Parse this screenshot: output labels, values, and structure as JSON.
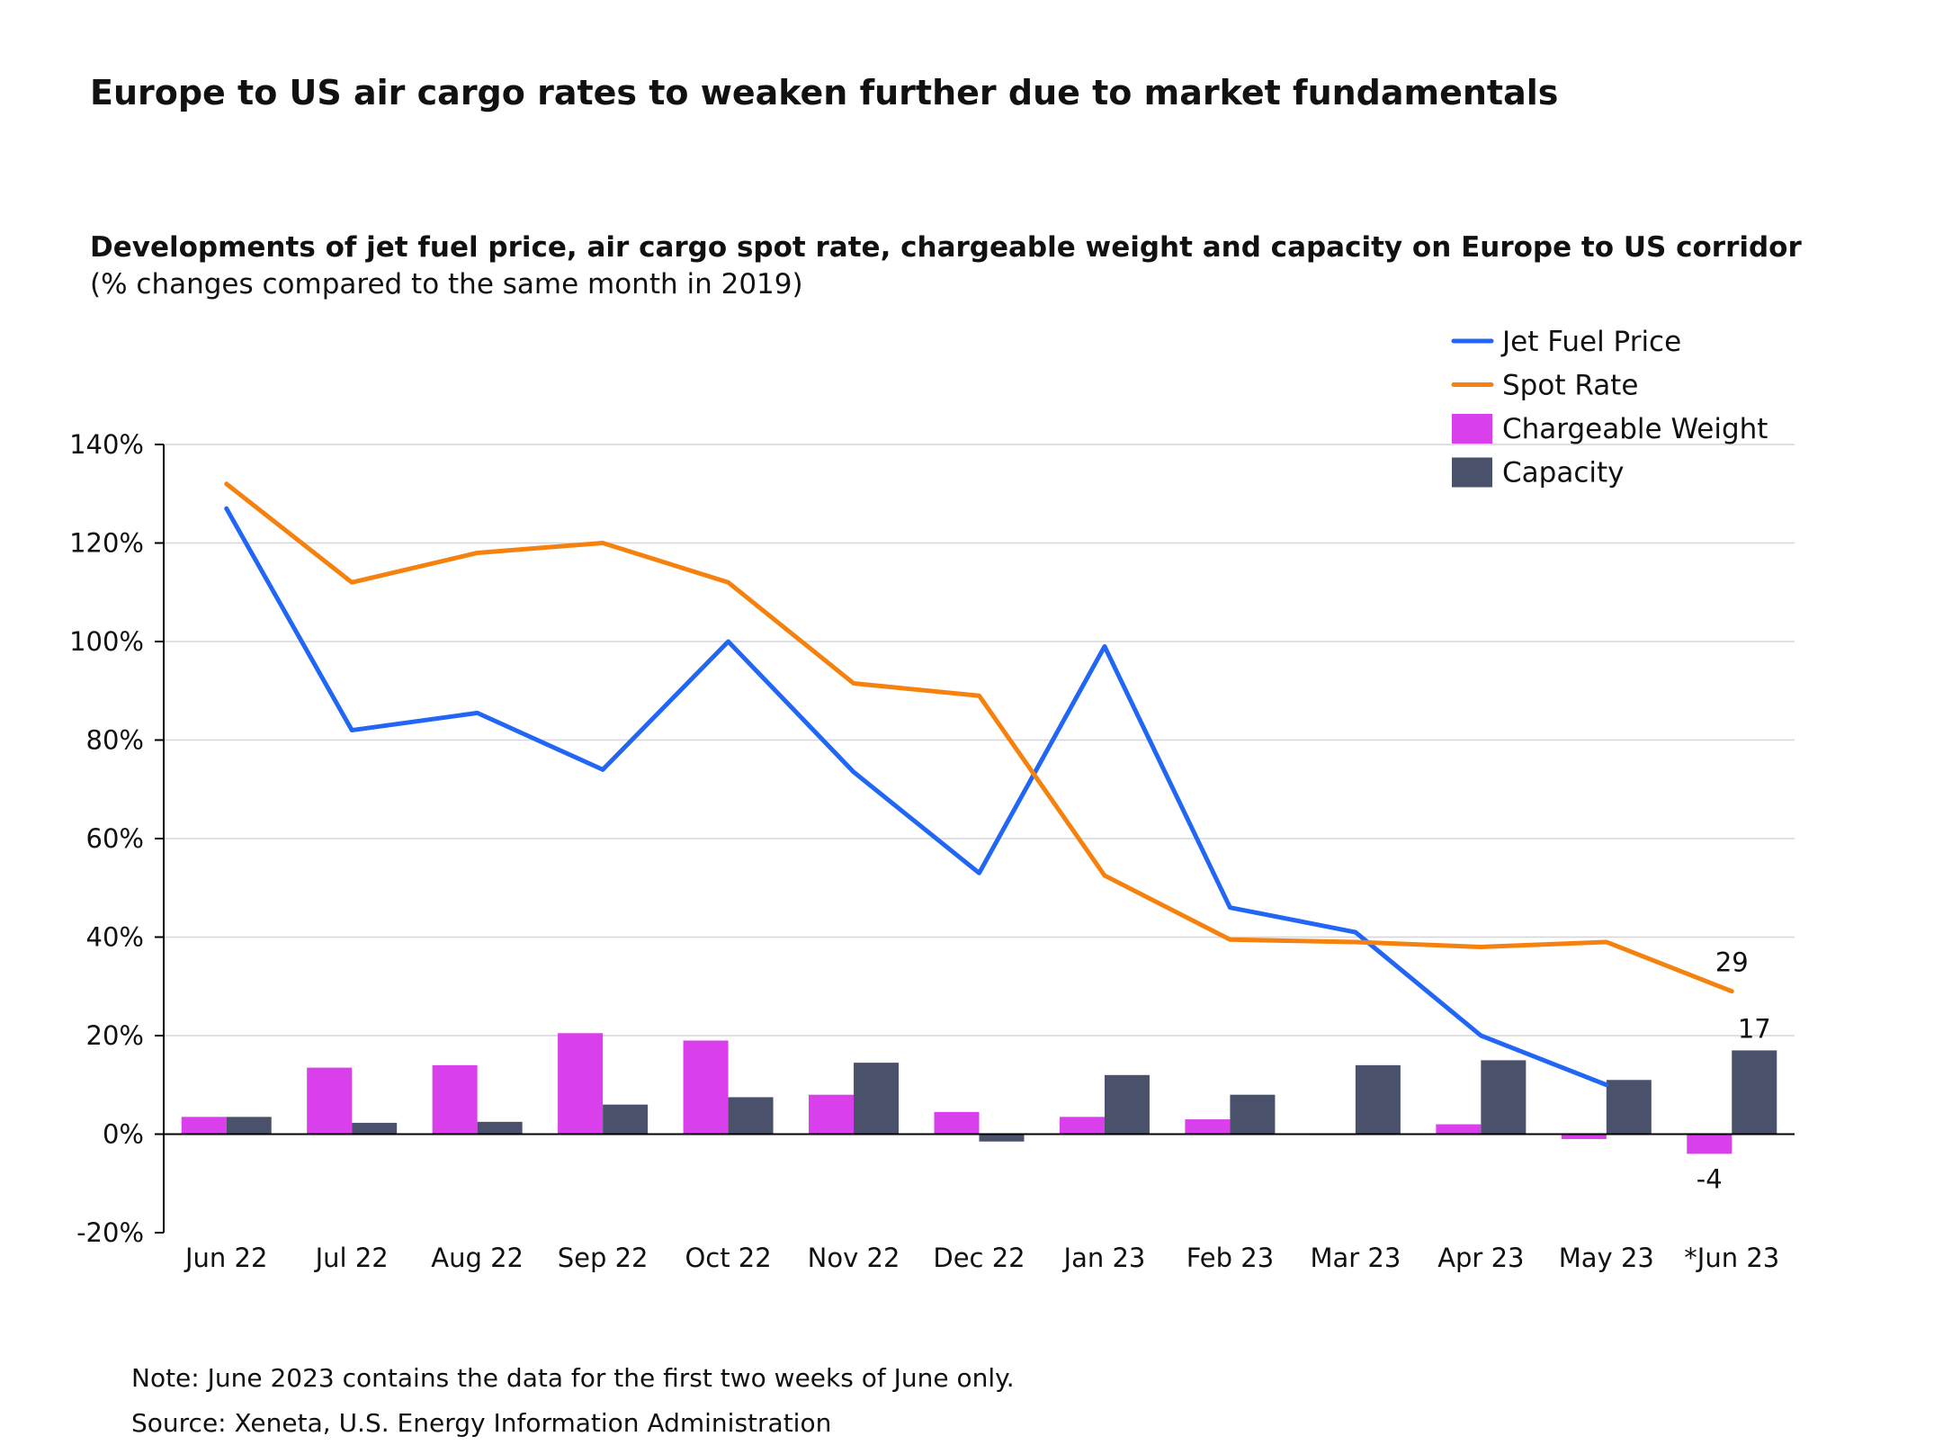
{
  "title": "Europe to US air cargo rates to weaken further due to market fundamentals",
  "subtitle": "Developments of jet fuel price, air cargo spot rate, chargeable weight and capacity on Europe to US corridor",
  "subtitle_note": "(% changes compared to the same month in 2019)",
  "notes": [
    "Note: June 2023 contains the data for the first two weeks of June only.",
    "Source: Xeneta, U.S. Energy Information Administration"
  ],
  "chart_data": {
    "type": "bar+line",
    "categories": [
      "Jun 22",
      "Jul 22",
      "Aug 22",
      "Sep 22",
      "Oct 22",
      "Nov 22",
      "Dec 22",
      "Jan 23",
      "Feb 23",
      "Mar 23",
      "Apr 23",
      "May 23",
      "*Jun 23"
    ],
    "ylim": [
      -20,
      140
    ],
    "yticks": [
      -20,
      0,
      20,
      40,
      60,
      80,
      100,
      120,
      140
    ],
    "ytick_labels": [
      "-20%",
      "0%",
      "20%",
      "40%",
      "60%",
      "80%",
      "100%",
      "120%",
      "140%"
    ],
    "grid": true,
    "legend": "top-right",
    "series": [
      {
        "name": "Jet Fuel Price",
        "kind": "line",
        "color": "#2266f5",
        "values": [
          127,
          82,
          85.5,
          74,
          100,
          73.5,
          53,
          99,
          46,
          41,
          20,
          10,
          null
        ]
      },
      {
        "name": "Spot Rate",
        "kind": "line",
        "color": "#f5820f",
        "values": [
          132,
          112,
          118,
          120,
          112,
          91.5,
          89,
          52.5,
          39.5,
          39,
          38,
          39,
          29
        ]
      },
      {
        "name": "Chargeable Weight",
        "kind": "bar",
        "color": "#d93fea",
        "values": [
          3.5,
          13.5,
          14,
          20.5,
          19,
          8,
          4.5,
          3.5,
          3,
          -0.2,
          2,
          -1,
          -4
        ]
      },
      {
        "name": "Capacity",
        "kind": "bar",
        "color": "#4a516b",
        "values": [
          3.5,
          2.3,
          2.5,
          6,
          7.5,
          14.5,
          -1.5,
          12,
          8,
          14,
          15,
          11,
          17
        ]
      }
    ],
    "data_labels": [
      {
        "series": "Spot Rate",
        "category": "*Jun 23",
        "text": "29"
      },
      {
        "series": "Capacity",
        "category": "*Jun 23",
        "text": "17"
      },
      {
        "series": "Chargeable Weight",
        "category": "*Jun 23",
        "text": "-4"
      }
    ]
  }
}
